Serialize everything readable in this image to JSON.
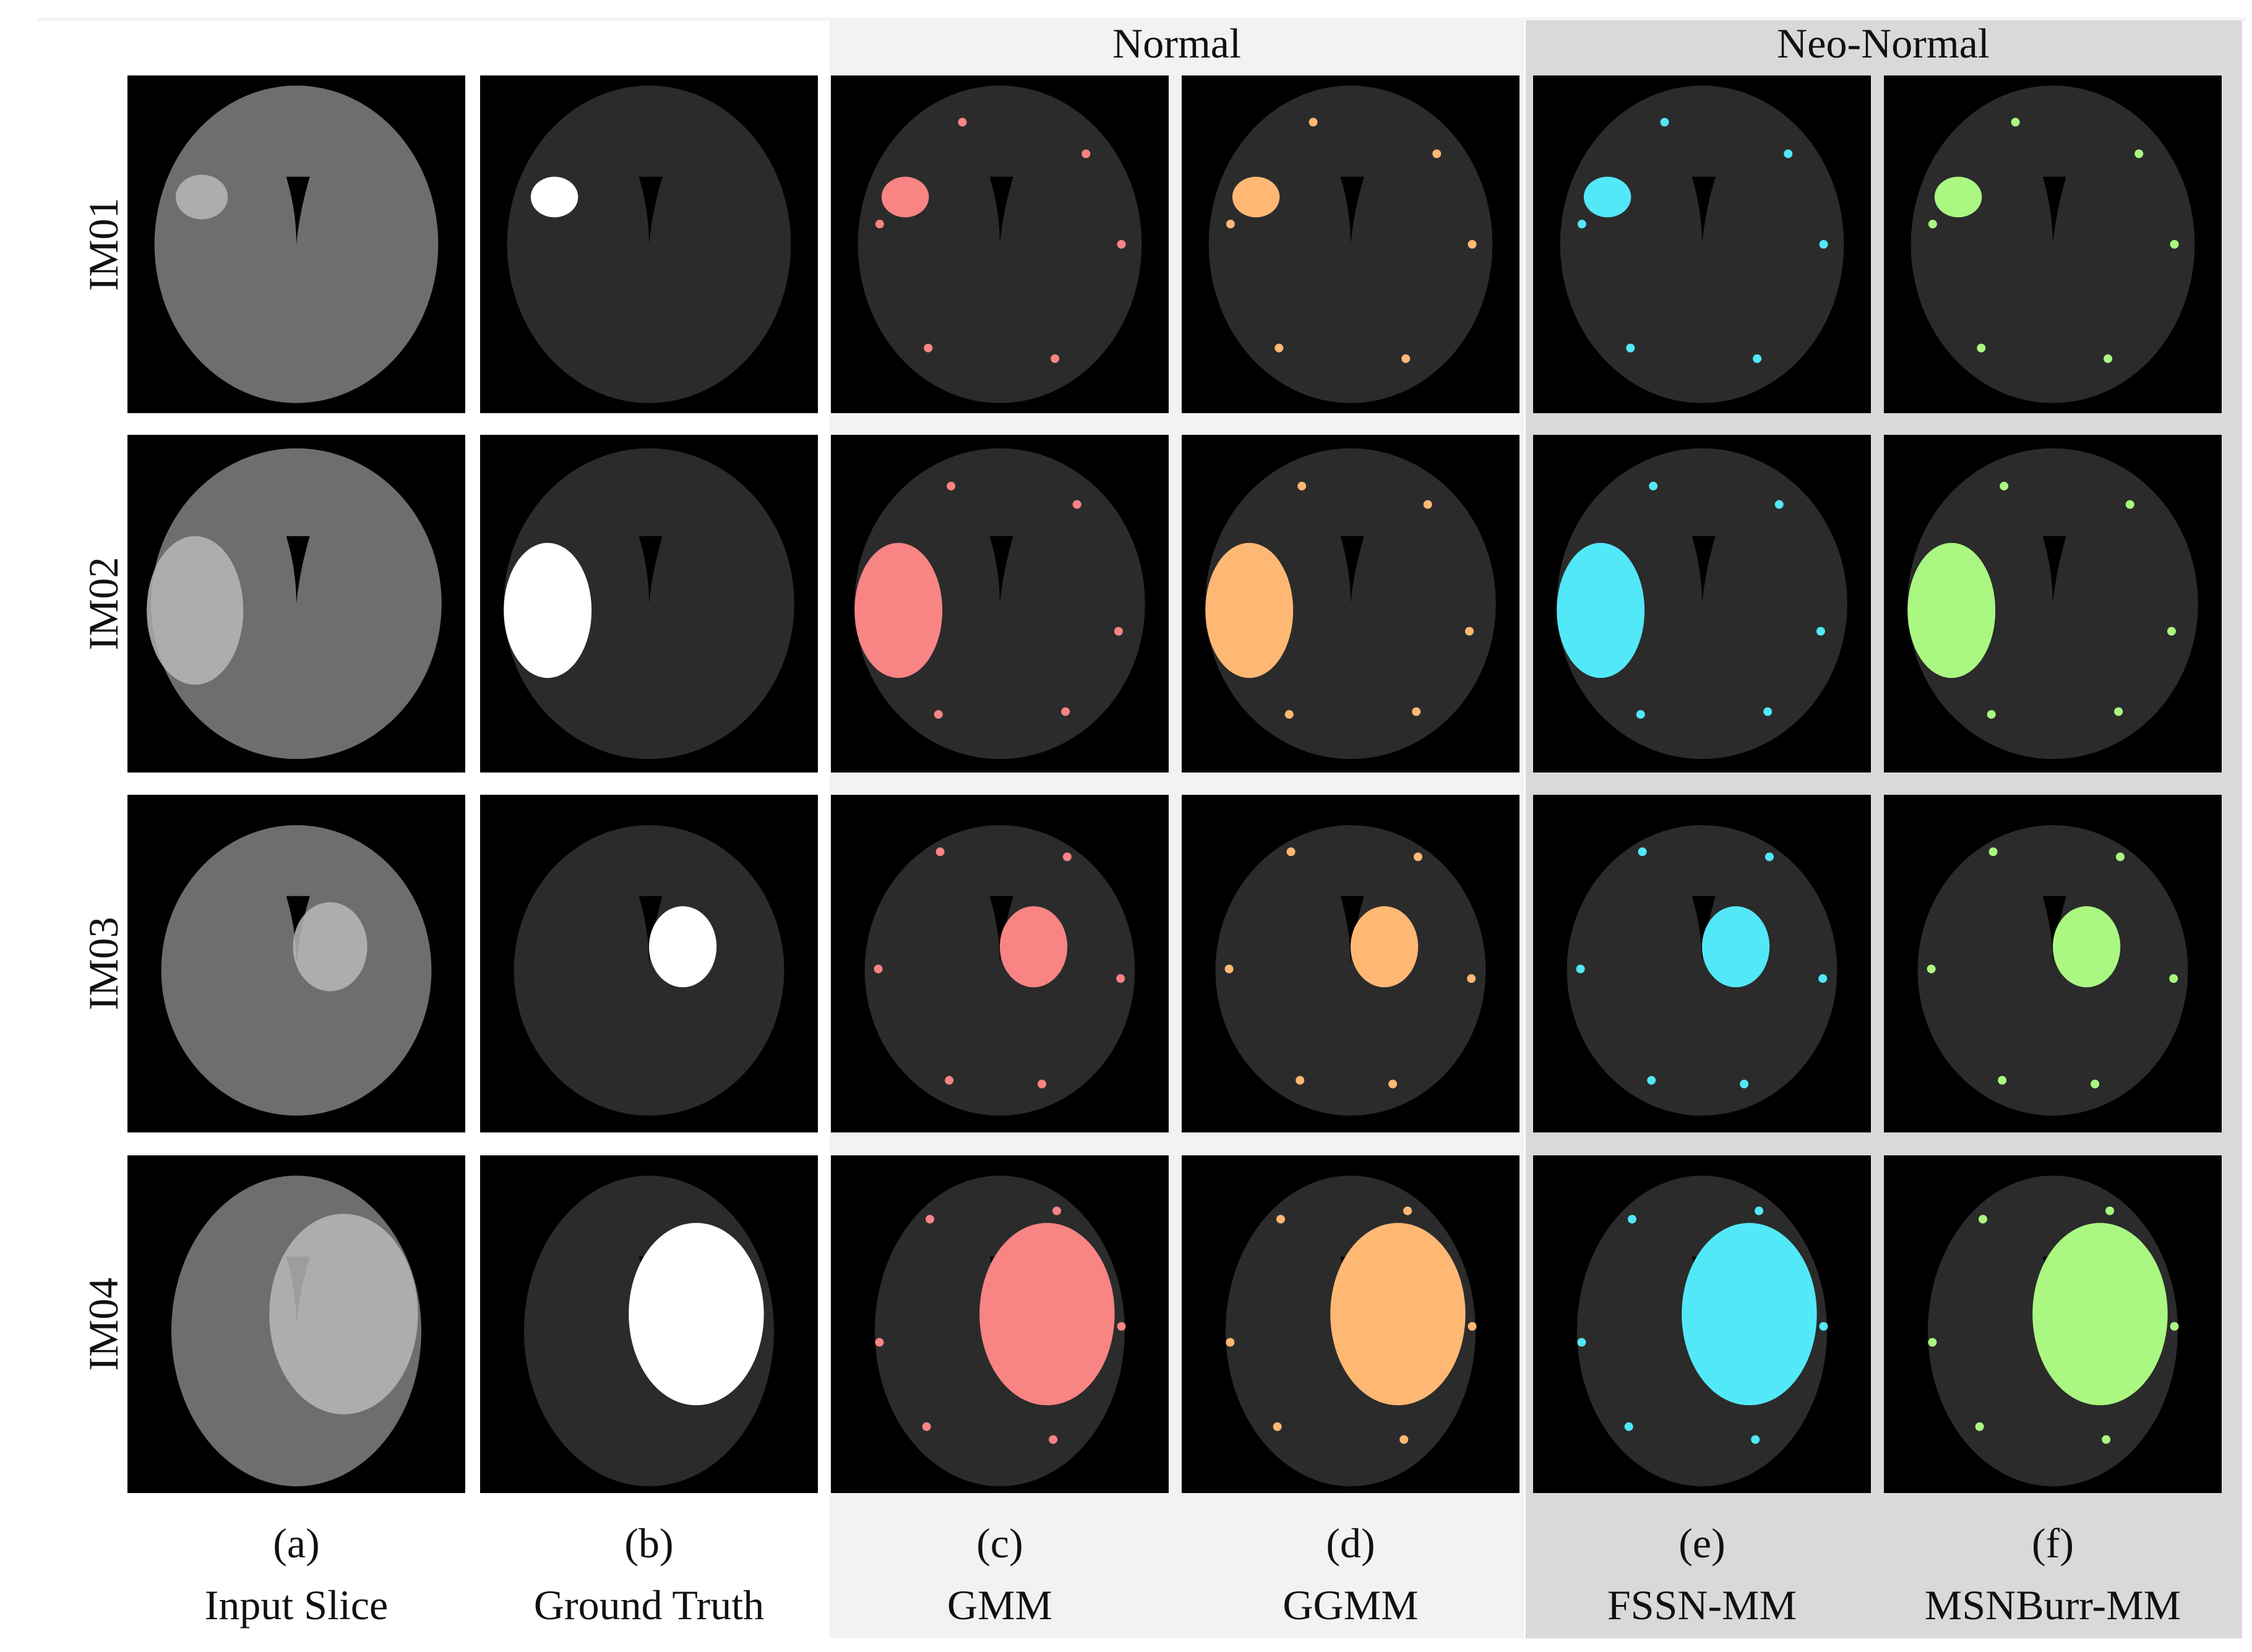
{
  "header": {
    "groups": [
      {
        "label": "Normal"
      },
      {
        "label": "Neo-Normal"
      }
    ]
  },
  "rows": [
    {
      "label": "IM01"
    },
    {
      "label": "IM02"
    },
    {
      "label": "IM03"
    },
    {
      "label": "IM04"
    }
  ],
  "columns": [
    {
      "letter": "(a)",
      "name": "Input Slice"
    },
    {
      "letter": "(b)",
      "name": "Ground Truth"
    },
    {
      "letter": "(c)",
      "name": "GMM"
    },
    {
      "letter": "(d)",
      "name": "GGMM"
    },
    {
      "letter": "(e)",
      "name": "FSSN-MM"
    },
    {
      "letter": "(f)",
      "name": "MSNBurr-MM"
    }
  ]
}
